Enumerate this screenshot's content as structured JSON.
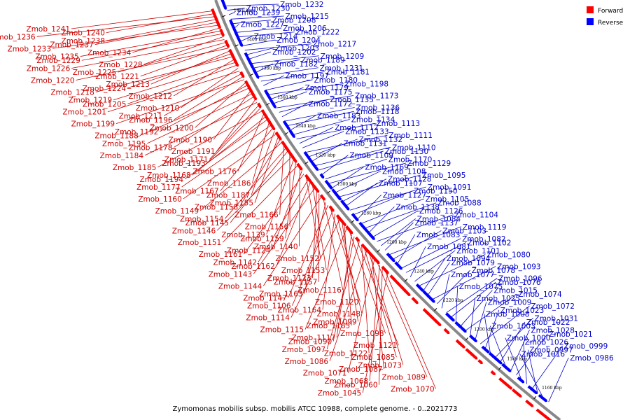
{
  "caption": "Zymomonas mobilis subsp. mobilis ATCC 10988, complete genome. - 0..2021773",
  "legend": [
    {
      "label": "Forward",
      "color": "#ff0000"
    },
    {
      "label": "Reverse",
      "color": "#0000ff"
    }
  ],
  "colors": {
    "forward": "#cc0000",
    "reverse": "#0000cc",
    "forward_gene": "#ff0000",
    "reverse_gene": "#0000ff"
  },
  "ticks": [
    "1420 kbp",
    "1400 kbp",
    "1380 kbp",
    "1360 kbp",
    "1340 kbp",
    "1320 kbp",
    "1300 kbp",
    "1280 kbp",
    "1260 kbp",
    "1240 kbp",
    "1220 kbp",
    "1200 kbp",
    "1180 kbp",
    "1160 kbp"
  ],
  "forward_labels": [
    "Zmob_1241",
    "Zmob_1240",
    "Zmob_1236",
    "Zmob_1238",
    "Zmob_1237",
    "Zmob_1233",
    "Zmob_1234",
    "Zmob_1235",
    "Zmob_1229",
    "Zmob_1228",
    "Zmob_1226",
    "Zmob_1225",
    "Zmob_1221",
    "Zmob_1220",
    "Zmob_1213",
    "Zmob_1224",
    "Zmob_1218",
    "Zmob_1212",
    "Zmob_1219",
    "Zmob_1205",
    "Zmob_1210",
    "Zmob_1201",
    "Zmob_1211",
    "Zmob_1196",
    "Zmob_1199",
    "Zmob_1200",
    "Zmob_1192",
    "Zmob_1188",
    "Zmob_1190",
    "Zmob_1195",
    "Zmob_1178",
    "Zmob_1191",
    "Zmob_1184",
    "Zmob_1171",
    "Zmob_1193",
    "Zmob_1185",
    "Zmob_1176",
    "Zmob_1168",
    "Zmob_1194",
    "Zmob_1186",
    "Zmob_1177",
    "Zmob_1167",
    "Zmob_1187",
    "Zmob_1160",
    "Zmob_1155",
    "Zmob_1158",
    "Zmob_1149",
    "Zmob_1166",
    "Zmob_1154",
    "Zmob_1145",
    "Zmob_1156",
    "Zmob_1146",
    "Zmob_1139",
    "Zmob_1159",
    "Zmob_1151",
    "Zmob_1140",
    "Zmob_1124",
    "Zmob_1161",
    "Zmob_1152",
    "Zmob_1142",
    "Zmob_1162",
    "Zmob_1153",
    "Zmob_1143",
    "Zmob_1123",
    "Zmob_1157",
    "Zmob_1144",
    "Zmob_1116",
    "Zmob_1163",
    "Zmob_1147",
    "Zmob_1120",
    "Zmob_1106",
    "Zmob_1164",
    "Zmob_1148",
    "Zmob_1114",
    "Zmob_1099",
    "Zmob_1165",
    "Zmob_1115",
    "Zmob_1098",
    "Zmob_1117",
    "Zmob_1090",
    "Zmob_1121",
    "Zmob_1097",
    "Zmob_1122",
    "Zmob_1085",
    "Zmob_1086",
    "Zmob_1073",
    "Zmob_1087",
    "Zmob_1071",
    "Zmob_1089",
    "Zmob_1068",
    "Zmob_1060",
    "Zmob_1070",
    "Zmob_1045"
  ],
  "reverse_labels": [
    "Zmob_1232",
    "Zmob_1230",
    "Zmob_1239",
    "Zmob_1215",
    "Zmob_1208",
    "Zmob_1227",
    "Zmob_1206",
    "Zmob_1222",
    "Zmob_1214",
    "Zmob_1204",
    "Zmob_1217",
    "Zmob_1203",
    "Zmob_1202",
    "Zmob_1209",
    "Zmob_1189",
    "Zmob_1182",
    "Zmob_1231",
    "Zmob_1181",
    "Zmob_1197",
    "Zmob_1180",
    "Zmob_1198",
    "Zmob_1179",
    "Zmob_1175",
    "Zmob_1173",
    "Zmob_1135",
    "Zmob_1172",
    "Zmob_1136",
    "Zmob_1118",
    "Zmob_1183",
    "Zmob_1134",
    "Zmob_1113",
    "Zmob_1112",
    "Zmob_1133",
    "Zmob_1111",
    "Zmob_1132",
    "Zmob_1131",
    "Zmob_1110",
    "Zmob_1130",
    "Zmob_1109",
    "Zmob_1170",
    "Zmob_1129",
    "Zmob_1169",
    "Zmob_1108",
    "Zmob_1095",
    "Zmob_1128",
    "Zmob_1107",
    "Zmob_1091",
    "Zmob_1150",
    "Zmob_1127",
    "Zmob_1105",
    "Zmob_1088",
    "Zmob_1138",
    "Zmob_1126",
    "Zmob_1104",
    "Zmob_1084",
    "Zmob_1137",
    "Zmob_1119",
    "Zmob_1103",
    "Zmob_1083",
    "Zmob_1082",
    "Zmob_1102",
    "Zmob_1081",
    "Zmob_1101",
    "Zmob_1080",
    "Zmob_1094",
    "Zmob_1079",
    "Zmob_1093",
    "Zmob_1078",
    "Zmob_1077",
    "Zmob_1096",
    "Zmob_1076",
    "Zmob_1075",
    "Zmob_1015",
    "Zmob_1074",
    "Zmob_1025",
    "Zmob_1009",
    "Zmob_1072",
    "Zmob_1023",
    "Zmob_1008",
    "Zmob_1031",
    "Zmob_1022",
    "Zmob_1003",
    "Zmob_1028",
    "Zmob_1021",
    "Zmob_1000",
    "Zmob_1026",
    "Zmob_0999",
    "Zmob_0997",
    "Zmob_1016",
    "Zmob_0986"
  ]
}
